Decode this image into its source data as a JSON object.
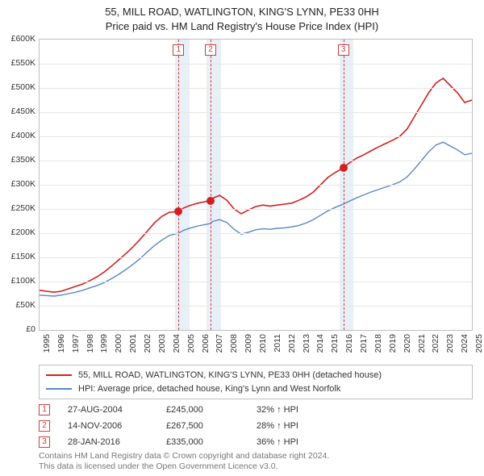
{
  "title_line1": "55, MILL ROAD, WATLINGTON, KING'S LYNN, PE33 0HH",
  "title_line2": "Price paid vs. HM Land Registry's House Price Index (HPI)",
  "title_fontsize": 13,
  "chart": {
    "type": "line",
    "x": {
      "start": 1995,
      "end": 2025,
      "tick_step": 1,
      "label_fontsize": 10.5,
      "label_rotation": -90
    },
    "y": {
      "min": 0,
      "max": 600000,
      "tick_step": 50000,
      "prefix": "£",
      "suffixK": true,
      "label_fontsize": 10.5
    },
    "background_color": "#ffffff",
    "grid_color": "#e6e6e6",
    "axis_color": "#bfbfbf",
    "band_color": "#e9eff7",
    "bands": [
      {
        "from": 2004.4,
        "to": 2005.4
      },
      {
        "from": 2006.6,
        "to": 2007.6
      },
      {
        "from": 2015.8,
        "to": 2016.8
      }
    ],
    "vlines": [
      {
        "x": 2004.65,
        "label": "1"
      },
      {
        "x": 2006.87,
        "label": "2"
      },
      {
        "x": 2016.08,
        "label": "3"
      }
    ],
    "vline_color": "#c94040",
    "series": [
      {
        "name": "price_paid",
        "color": "#d22020",
        "width": 1.6,
        "legend": "55, MILL ROAD, WATLINGTON, KING'S LYNN, PE33 0HH (detached house)",
        "data": [
          [
            1995,
            82000
          ],
          [
            1995.5,
            80000
          ],
          [
            1996,
            78000
          ],
          [
            1996.5,
            80000
          ],
          [
            1997,
            85000
          ],
          [
            1997.5,
            90000
          ],
          [
            1998,
            95000
          ],
          [
            1998.5,
            102000
          ],
          [
            1999,
            110000
          ],
          [
            1999.5,
            120000
          ],
          [
            2000,
            132000
          ],
          [
            2000.5,
            145000
          ],
          [
            2001,
            158000
          ],
          [
            2001.5,
            172000
          ],
          [
            2002,
            188000
          ],
          [
            2002.5,
            205000
          ],
          [
            2003,
            222000
          ],
          [
            2003.5,
            235000
          ],
          [
            2004,
            243000
          ],
          [
            2004.65,
            245000
          ],
          [
            2005,
            252000
          ],
          [
            2005.5,
            258000
          ],
          [
            2006,
            262000
          ],
          [
            2006.87,
            267500
          ],
          [
            2007,
            272000
          ],
          [
            2007.5,
            278000
          ],
          [
            2008,
            268000
          ],
          [
            2008.5,
            250000
          ],
          [
            2009,
            240000
          ],
          [
            2009.5,
            248000
          ],
          [
            2010,
            255000
          ],
          [
            2010.5,
            258000
          ],
          [
            2011,
            256000
          ],
          [
            2011.5,
            258000
          ],
          [
            2012,
            260000
          ],
          [
            2012.5,
            262000
          ],
          [
            2013,
            268000
          ],
          [
            2013.5,
            275000
          ],
          [
            2014,
            285000
          ],
          [
            2014.5,
            300000
          ],
          [
            2015,
            315000
          ],
          [
            2015.5,
            325000
          ],
          [
            2016.08,
            335000
          ],
          [
            2016.5,
            345000
          ],
          [
            2017,
            355000
          ],
          [
            2017.5,
            362000
          ],
          [
            2018,
            370000
          ],
          [
            2018.5,
            378000
          ],
          [
            2019,
            385000
          ],
          [
            2019.5,
            392000
          ],
          [
            2020,
            400000
          ],
          [
            2020.5,
            415000
          ],
          [
            2021,
            440000
          ],
          [
            2021.5,
            465000
          ],
          [
            2022,
            490000
          ],
          [
            2022.5,
            510000
          ],
          [
            2023,
            520000
          ],
          [
            2023.5,
            505000
          ],
          [
            2024,
            490000
          ],
          [
            2024.5,
            470000
          ],
          [
            2025,
            475000
          ]
        ]
      },
      {
        "name": "hpi",
        "color": "#5a86c5",
        "width": 1.4,
        "legend": "HPI: Average price, detached house, King's Lynn and West Norfolk",
        "data": [
          [
            1995,
            72000
          ],
          [
            1995.5,
            71000
          ],
          [
            1996,
            70000
          ],
          [
            1996.5,
            72000
          ],
          [
            1997,
            75000
          ],
          [
            1997.5,
            78000
          ],
          [
            1998,
            82000
          ],
          [
            1998.5,
            87000
          ],
          [
            1999,
            92000
          ],
          [
            1999.5,
            98000
          ],
          [
            2000,
            106000
          ],
          [
            2000.5,
            115000
          ],
          [
            2001,
            125000
          ],
          [
            2001.5,
            136000
          ],
          [
            2002,
            148000
          ],
          [
            2002.5,
            162000
          ],
          [
            2003,
            175000
          ],
          [
            2003.5,
            186000
          ],
          [
            2004,
            195000
          ],
          [
            2004.65,
            200000
          ],
          [
            2005,
            206000
          ],
          [
            2005.5,
            211000
          ],
          [
            2006,
            215000
          ],
          [
            2006.87,
            220000
          ],
          [
            2007,
            224000
          ],
          [
            2007.5,
            228000
          ],
          [
            2008,
            222000
          ],
          [
            2008.5,
            208000
          ],
          [
            2009,
            198000
          ],
          [
            2009.5,
            202000
          ],
          [
            2010,
            207000
          ],
          [
            2010.5,
            209000
          ],
          [
            2011,
            208000
          ],
          [
            2011.5,
            210000
          ],
          [
            2012,
            211000
          ],
          [
            2012.5,
            213000
          ],
          [
            2013,
            216000
          ],
          [
            2013.5,
            221000
          ],
          [
            2014,
            228000
          ],
          [
            2014.5,
            237000
          ],
          [
            2015,
            246000
          ],
          [
            2015.5,
            253000
          ],
          [
            2016.08,
            260000
          ],
          [
            2016.5,
            266000
          ],
          [
            2017,
            273000
          ],
          [
            2017.5,
            279000
          ],
          [
            2018,
            285000
          ],
          [
            2018.5,
            290000
          ],
          [
            2019,
            295000
          ],
          [
            2019.5,
            300000
          ],
          [
            2020,
            306000
          ],
          [
            2020.5,
            316000
          ],
          [
            2021,
            332000
          ],
          [
            2021.5,
            350000
          ],
          [
            2022,
            368000
          ],
          [
            2022.5,
            382000
          ],
          [
            2023,
            388000
          ],
          [
            2023.5,
            380000
          ],
          [
            2024,
            372000
          ],
          [
            2024.5,
            362000
          ],
          [
            2025,
            365000
          ]
        ]
      }
    ],
    "points": [
      {
        "x": 2004.65,
        "y": 245000,
        "color": "#d22020"
      },
      {
        "x": 2006.87,
        "y": 267500,
        "color": "#d22020"
      },
      {
        "x": 2016.08,
        "y": 335000,
        "color": "#d22020"
      }
    ]
  },
  "legend": {
    "border_color": "#bfbfbf",
    "items": [
      {
        "color": "#d22020",
        "label": "55, MILL ROAD, WATLINGTON, KING'S LYNN, PE33 0HH (detached house)"
      },
      {
        "color": "#5a86c5",
        "label": "HPI: Average price, detached house, King's Lynn and West Norfolk"
      }
    ]
  },
  "transactions": [
    {
      "badge": "1",
      "date": "27-AUG-2004",
      "price": "£245,000",
      "delta": "32% ↑ HPI"
    },
    {
      "badge": "2",
      "date": "14-NOV-2006",
      "price": "£267,500",
      "delta": "28% ↑ HPI"
    },
    {
      "badge": "3",
      "date": "28-JAN-2016",
      "price": "£335,000",
      "delta": "36% ↑ HPI"
    }
  ],
  "footer_line1": "Contains HM Land Registry data © Crown copyright and database right 2024.",
  "footer_line2": "This data is licensed under the Open Government Licence v3.0."
}
